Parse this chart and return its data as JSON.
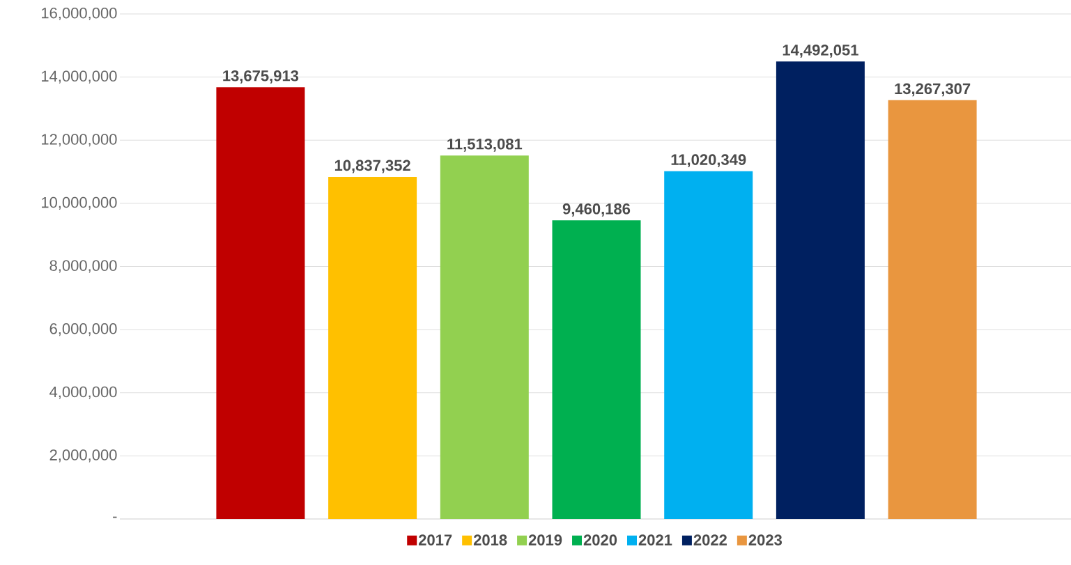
{
  "chart_data": {
    "type": "bar",
    "categories": [
      null
    ],
    "series": [
      {
        "name": "2017",
        "color": "#c00000",
        "values": [
          13675913
        ],
        "value_labels": [
          "13,675,913"
        ]
      },
      {
        "name": "2018",
        "color": "#ffc000",
        "values": [
          10837352
        ],
        "value_labels": [
          "10,837,352"
        ]
      },
      {
        "name": "2019",
        "color": "#92d050",
        "values": [
          11513081
        ],
        "value_labels": [
          "11,513,081"
        ]
      },
      {
        "name": "2020",
        "color": "#00b050",
        "values": [
          9460186
        ],
        "value_labels": [
          "9,460,186"
        ]
      },
      {
        "name": "2021",
        "color": "#00b0f0",
        "values": [
          11020349
        ],
        "value_labels": [
          "11,020,349"
        ]
      },
      {
        "name": "2022",
        "color": "#002060",
        "values": [
          14492051
        ],
        "value_labels": [
          "14,492,051"
        ]
      },
      {
        "name": "2023",
        "color": "#e9963f",
        "values": [
          13267307
        ],
        "value_labels": [
          "13,267,307"
        ]
      }
    ],
    "ylim": [
      0,
      16000000
    ],
    "yticks": [
      {
        "value": 0,
        "label": "-"
      },
      {
        "value": 2000000,
        "label": "2,000,000"
      },
      {
        "value": 4000000,
        "label": "4,000,000"
      },
      {
        "value": 6000000,
        "label": "6,000,000"
      },
      {
        "value": 8000000,
        "label": "8,000,000"
      },
      {
        "value": 10000000,
        "label": "10,000,000"
      },
      {
        "value": 12000000,
        "label": "12,000,000"
      },
      {
        "value": 14000000,
        "label": "14,000,000"
      },
      {
        "value": 16000000,
        "label": "16,000,000"
      }
    ],
    "grid": "y",
    "legend": "bottom"
  }
}
